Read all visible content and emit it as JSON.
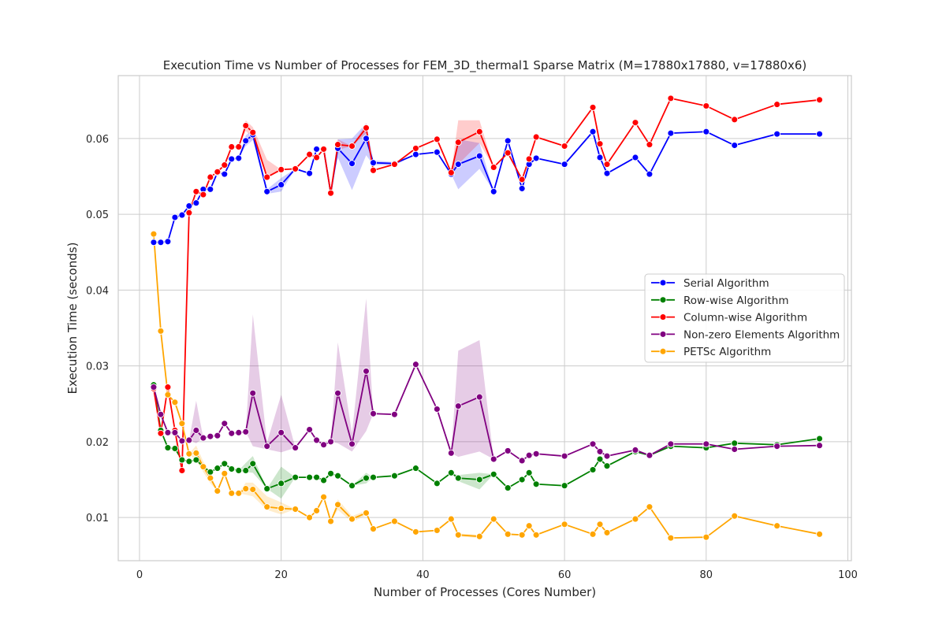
{
  "chart_data": {
    "type": "line",
    "title": "Execution Time vs Number of Processes for FEM_3D_thermal1 Sparse Matrix (M=17880x17880, v=17880x6)",
    "xlabel": "Number of Processes (Cores Number)",
    "ylabel": "Execution Time (seconds)",
    "xlim": [
      -3,
      100.5
    ],
    "ylim": [
      0.0043,
      0.0683
    ],
    "xticks": [
      0,
      20,
      40,
      60,
      80,
      100
    ],
    "yticks": [
      0.01,
      0.02,
      0.03,
      0.04,
      0.05,
      0.06
    ],
    "xtick_labels": [
      "0",
      "20",
      "40",
      "60",
      "80",
      "100"
    ],
    "ytick_labels": [
      "0.01",
      "0.02",
      "0.03",
      "0.04",
      "0.05",
      "0.06"
    ],
    "grid": true,
    "legend_position": "center-right",
    "series": [
      {
        "name": "Serial Algorithm",
        "color": "#0000ff",
        "x": [
          2,
          3,
          4,
          5,
          6,
          7,
          8,
          9,
          10,
          11,
          12,
          13,
          14,
          15,
          16,
          18,
          20,
          22,
          24,
          25,
          26,
          27,
          28,
          30,
          32,
          33,
          36,
          39,
          42,
          44,
          45,
          48,
          50,
          52,
          54,
          55,
          56,
          60,
          64,
          65,
          66,
          70,
          72,
          75,
          80,
          84,
          90,
          96
        ],
        "y": [
          0.0463,
          0.0463,
          0.0464,
          0.0496,
          0.0499,
          0.0511,
          0.0515,
          0.0533,
          0.0533,
          0.0555,
          0.0553,
          0.0573,
          0.0574,
          0.0597,
          0.0605,
          0.053,
          0.0539,
          0.056,
          0.0554,
          0.0586,
          0.0586,
          0.0528,
          0.0587,
          0.0567,
          0.06,
          0.0568,
          0.0567,
          0.0579,
          0.0582,
          0.0553,
          0.0566,
          0.0577,
          0.053,
          0.0597,
          0.0534,
          0.0566,
          0.0574,
          0.0566,
          0.0609,
          0.0575,
          0.0554,
          0.0575,
          0.0553,
          0.0607,
          0.0609,
          0.0591,
          0.0606,
          0.0606
        ],
        "band_lower": [
          0.0463,
          0.0463,
          0.0464,
          0.0496,
          0.0499,
          0.0511,
          0.0515,
          0.0533,
          0.0533,
          0.0555,
          0.0553,
          0.0573,
          0.0574,
          0.059,
          0.0598,
          0.0527,
          0.053,
          0.056,
          0.0554,
          0.0586,
          0.0586,
          0.0528,
          0.0575,
          0.0532,
          0.0578,
          0.0565,
          0.0565,
          0.0579,
          0.0582,
          0.0553,
          0.0533,
          0.056,
          0.053,
          0.0597,
          0.0534,
          0.0566,
          0.0574,
          0.0566,
          0.0609,
          0.0575,
          0.0554,
          0.0575,
          0.0553,
          0.0607,
          0.0609,
          0.0591,
          0.0606,
          0.0606
        ],
        "band_upper": [
          0.0463,
          0.0463,
          0.0464,
          0.0496,
          0.0499,
          0.0511,
          0.0515,
          0.0533,
          0.0533,
          0.0555,
          0.0553,
          0.0573,
          0.0574,
          0.0604,
          0.0612,
          0.0533,
          0.0548,
          0.056,
          0.0554,
          0.0586,
          0.0586,
          0.0528,
          0.0599,
          0.06,
          0.062,
          0.0571,
          0.0569,
          0.0579,
          0.0582,
          0.0553,
          0.0599,
          0.0594,
          0.053,
          0.0597,
          0.0534,
          0.0566,
          0.0574,
          0.0566,
          0.0609,
          0.0575,
          0.0554,
          0.0575,
          0.0553,
          0.0607,
          0.0609,
          0.0591,
          0.0606,
          0.0606
        ]
      },
      {
        "name": "Row-wise Algorithm",
        "color": "#008000",
        "x": [
          2,
          3,
          4,
          5,
          6,
          7,
          8,
          9,
          10,
          11,
          12,
          13,
          14,
          15,
          16,
          18,
          20,
          22,
          24,
          25,
          26,
          27,
          28,
          30,
          32,
          33,
          36,
          39,
          42,
          44,
          45,
          48,
          50,
          52,
          54,
          55,
          56,
          60,
          64,
          65,
          66,
          70,
          72,
          75,
          80,
          84,
          90,
          96
        ],
        "y": [
          0.0275,
          0.0215,
          0.0192,
          0.0191,
          0.0176,
          0.0174,
          0.0176,
          0.0167,
          0.016,
          0.0165,
          0.0171,
          0.0164,
          0.0162,
          0.0162,
          0.0171,
          0.0138,
          0.0145,
          0.0153,
          0.0153,
          0.0153,
          0.0149,
          0.0158,
          0.0155,
          0.0142,
          0.0152,
          0.0153,
          0.0155,
          0.0165,
          0.0145,
          0.0159,
          0.0152,
          0.015,
          0.0157,
          0.0139,
          0.015,
          0.0159,
          0.0144,
          0.0142,
          0.0163,
          0.0177,
          0.0168,
          0.0187,
          0.0182,
          0.0194,
          0.0192,
          0.0198,
          0.0196,
          0.0204
        ],
        "band_lower": [
          0.0275,
          0.0215,
          0.0192,
          0.0191,
          0.0176,
          0.0174,
          0.0176,
          0.0167,
          0.016,
          0.0165,
          0.0171,
          0.0164,
          0.0162,
          0.016,
          0.0159,
          0.0138,
          0.0125,
          0.0153,
          0.0153,
          0.0153,
          0.0149,
          0.0158,
          0.0155,
          0.0142,
          0.0145,
          0.0153,
          0.0155,
          0.0165,
          0.0145,
          0.0159,
          0.0148,
          0.0137,
          0.0157,
          0.0139,
          0.015,
          0.0159,
          0.0144,
          0.0142,
          0.0163,
          0.0177,
          0.0168,
          0.0187,
          0.0182,
          0.0194,
          0.0192,
          0.0198,
          0.0196,
          0.0204
        ],
        "band_upper": [
          0.0275,
          0.0215,
          0.0192,
          0.0191,
          0.0176,
          0.0174,
          0.0176,
          0.0167,
          0.016,
          0.0165,
          0.0171,
          0.0164,
          0.0162,
          0.0172,
          0.0181,
          0.0138,
          0.0167,
          0.0153,
          0.0153,
          0.0153,
          0.0149,
          0.0158,
          0.0155,
          0.0142,
          0.0159,
          0.0153,
          0.0155,
          0.0165,
          0.0145,
          0.0159,
          0.0156,
          0.0159,
          0.0157,
          0.0139,
          0.015,
          0.0159,
          0.0144,
          0.0142,
          0.0163,
          0.0177,
          0.0168,
          0.0187,
          0.0182,
          0.0194,
          0.0192,
          0.0198,
          0.0196,
          0.0204
        ]
      },
      {
        "name": "Column-wise Algorithm",
        "color": "#ff0000",
        "x": [
          2,
          3,
          4,
          5,
          6,
          7,
          8,
          9,
          10,
          11,
          12,
          13,
          14,
          15,
          16,
          18,
          20,
          22,
          24,
          25,
          26,
          27,
          28,
          30,
          32,
          33,
          36,
          39,
          42,
          44,
          45,
          48,
          50,
          52,
          54,
          55,
          56,
          60,
          64,
          65,
          66,
          70,
          72,
          75,
          80,
          84,
          90,
          96
        ],
        "y": [
          0.027,
          0.0211,
          0.0272,
          0.0215,
          0.0162,
          0.0502,
          0.053,
          0.0526,
          0.0549,
          0.0556,
          0.0565,
          0.0589,
          0.0589,
          0.0617,
          0.0608,
          0.0549,
          0.0559,
          0.056,
          0.0579,
          0.0575,
          0.0586,
          0.0528,
          0.0592,
          0.059,
          0.0614,
          0.0558,
          0.0566,
          0.0587,
          0.0599,
          0.0555,
          0.0595,
          0.0609,
          0.0562,
          0.0581,
          0.0546,
          0.0573,
          0.0602,
          0.059,
          0.0641,
          0.0593,
          0.0566,
          0.0621,
          0.0592,
          0.0653,
          0.0643,
          0.0625,
          0.0645,
          0.0651
        ],
        "band_lower": [
          0.027,
          0.0211,
          0.0272,
          0.0215,
          0.0162,
          0.0502,
          0.053,
          0.0526,
          0.0549,
          0.0556,
          0.0565,
          0.0589,
          0.0589,
          0.061,
          0.0601,
          0.0549,
          0.0559,
          0.056,
          0.0579,
          0.0575,
          0.0586,
          0.0528,
          0.0585,
          0.059,
          0.0607,
          0.0558,
          0.0566,
          0.0587,
          0.0599,
          0.0555,
          0.0566,
          0.0594,
          0.0562,
          0.0581,
          0.0546,
          0.0573,
          0.0602,
          0.059,
          0.0641,
          0.0593,
          0.0566,
          0.0621,
          0.0592,
          0.0653,
          0.0643,
          0.0625,
          0.0645,
          0.0651
        ],
        "band_upper": [
          0.027,
          0.0211,
          0.0272,
          0.0215,
          0.0162,
          0.0502,
          0.053,
          0.0526,
          0.0549,
          0.0556,
          0.0565,
          0.0589,
          0.0589,
          0.0624,
          0.0615,
          0.0572,
          0.0559,
          0.056,
          0.0579,
          0.0575,
          0.0586,
          0.0528,
          0.0599,
          0.059,
          0.062,
          0.0558,
          0.0566,
          0.0587,
          0.0599,
          0.0555,
          0.0624,
          0.0624,
          0.0562,
          0.0581,
          0.0546,
          0.0573,
          0.0602,
          0.059,
          0.0641,
          0.0593,
          0.0566,
          0.0621,
          0.0592,
          0.0653,
          0.0643,
          0.0625,
          0.0645,
          0.0651
        ]
      },
      {
        "name": "Non-zero Elements Algorithm",
        "color": "#800080",
        "x": [
          2,
          3,
          4,
          5,
          6,
          7,
          8,
          9,
          10,
          11,
          12,
          13,
          14,
          15,
          16,
          18,
          20,
          22,
          24,
          25,
          26,
          27,
          28,
          30,
          32,
          33,
          36,
          39,
          42,
          44,
          45,
          48,
          50,
          52,
          54,
          55,
          56,
          60,
          64,
          65,
          66,
          70,
          72,
          75,
          80,
          84,
          90,
          96
        ],
        "y": [
          0.0272,
          0.0236,
          0.0212,
          0.0212,
          0.0201,
          0.0202,
          0.0215,
          0.0205,
          0.0207,
          0.0208,
          0.0224,
          0.0211,
          0.0212,
          0.0213,
          0.0264,
          0.0194,
          0.0212,
          0.0192,
          0.0216,
          0.0202,
          0.0196,
          0.02,
          0.0264,
          0.0197,
          0.0293,
          0.0237,
          0.0236,
          0.0302,
          0.0243,
          0.0185,
          0.0247,
          0.0259,
          0.0177,
          0.0188,
          0.0175,
          0.0182,
          0.0184,
          0.0181,
          0.0197,
          0.0187,
          0.0181,
          0.0189,
          0.0182,
          0.0197,
          0.0197,
          0.019,
          0.0194,
          0.0195
        ],
        "band_lower": [
          0.0272,
          0.0236,
          0.0212,
          0.0212,
          0.0201,
          0.0202,
          0.0198,
          0.0205,
          0.0207,
          0.0208,
          0.0224,
          0.0211,
          0.0212,
          0.0213,
          0.0194,
          0.019,
          0.0186,
          0.0192,
          0.0216,
          0.0202,
          0.0196,
          0.02,
          0.0198,
          0.0187,
          0.0214,
          0.0237,
          0.0236,
          0.0302,
          0.0243,
          0.0185,
          0.018,
          0.0187,
          0.0177,
          0.0188,
          0.0175,
          0.0182,
          0.0184,
          0.0181,
          0.0197,
          0.0187,
          0.0181,
          0.0189,
          0.0182,
          0.0197,
          0.0197,
          0.019,
          0.0194,
          0.0195
        ],
        "band_upper": [
          0.0272,
          0.0236,
          0.0212,
          0.0212,
          0.0201,
          0.0202,
          0.0254,
          0.0205,
          0.0207,
          0.0208,
          0.0224,
          0.0211,
          0.0212,
          0.0213,
          0.0368,
          0.0199,
          0.0262,
          0.0192,
          0.0216,
          0.0202,
          0.0196,
          0.02,
          0.0331,
          0.0211,
          0.0389,
          0.0237,
          0.0236,
          0.0302,
          0.0243,
          0.0185,
          0.032,
          0.0334,
          0.0177,
          0.0188,
          0.0175,
          0.0182,
          0.0184,
          0.0181,
          0.0197,
          0.0187,
          0.0181,
          0.0189,
          0.0182,
          0.0197,
          0.0197,
          0.019,
          0.0194,
          0.0195
        ]
      },
      {
        "name": "PETSc Algorithm",
        "color": "#ffa500",
        "x": [
          2,
          3,
          4,
          5,
          6,
          7,
          8,
          9,
          10,
          11,
          12,
          13,
          14,
          15,
          16,
          18,
          20,
          22,
          24,
          25,
          26,
          27,
          28,
          30,
          32,
          33,
          36,
          39,
          42,
          44,
          45,
          48,
          50,
          52,
          54,
          55,
          56,
          60,
          64,
          65,
          66,
          70,
          72,
          75,
          80,
          84,
          90,
          96
        ],
        "y": [
          0.0474,
          0.0346,
          0.0262,
          0.0252,
          0.0224,
          0.0184,
          0.0185,
          0.0167,
          0.0152,
          0.0135,
          0.0158,
          0.0132,
          0.0132,
          0.0138,
          0.0137,
          0.0114,
          0.0112,
          0.0111,
          0.01,
          0.0109,
          0.0127,
          0.0095,
          0.0117,
          0.0098,
          0.0106,
          0.0085,
          0.0095,
          0.0081,
          0.0083,
          0.0098,
          0.0077,
          0.0075,
          0.0098,
          0.0078,
          0.0077,
          0.0089,
          0.0077,
          0.0091,
          0.0078,
          0.0091,
          0.008,
          0.0098,
          0.0114,
          0.0073,
          0.0074,
          0.0102,
          0.0089,
          0.0078
        ],
        "band_lower": [
          0.0474,
          0.0346,
          0.0262,
          0.0252,
          0.0224,
          0.0184,
          0.0175,
          0.016,
          0.0145,
          0.0135,
          0.0158,
          0.0132,
          0.0132,
          0.013,
          0.0128,
          0.011,
          0.0104,
          0.0111,
          0.01,
          0.0109,
          0.0127,
          0.0095,
          0.011,
          0.0094,
          0.0103,
          0.0085,
          0.0095,
          0.0081,
          0.0083,
          0.0098,
          0.0075,
          0.0073,
          0.0098,
          0.0078,
          0.0077,
          0.0089,
          0.0077,
          0.0091,
          0.0078,
          0.0091,
          0.008,
          0.0098,
          0.0114,
          0.0073,
          0.0074,
          0.0102,
          0.0089,
          0.0078
        ],
        "band_upper": [
          0.0474,
          0.0346,
          0.0262,
          0.0252,
          0.0224,
          0.0184,
          0.0195,
          0.0174,
          0.0159,
          0.0135,
          0.0158,
          0.0132,
          0.0132,
          0.0146,
          0.0146,
          0.0128,
          0.012,
          0.0111,
          0.01,
          0.0109,
          0.0127,
          0.0095,
          0.0124,
          0.0102,
          0.0109,
          0.0085,
          0.0095,
          0.0081,
          0.0083,
          0.0098,
          0.0079,
          0.0077,
          0.0098,
          0.0078,
          0.0077,
          0.0089,
          0.0077,
          0.0091,
          0.0078,
          0.0091,
          0.008,
          0.0098,
          0.0114,
          0.0073,
          0.0074,
          0.0102,
          0.0089,
          0.0078
        ]
      }
    ]
  }
}
